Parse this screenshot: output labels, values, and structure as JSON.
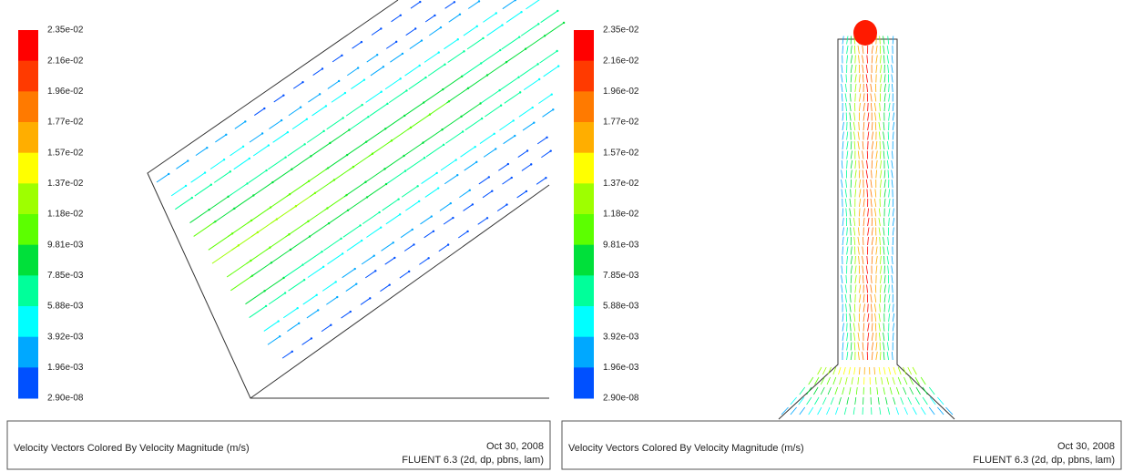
{
  "panels": [
    {
      "colorbar": {
        "labels": [
          "2.35e-02",
          "2.16e-02",
          "1.96e-02",
          "1.77e-02",
          "1.57e-02",
          "1.37e-02",
          "1.18e-02",
          "9.81e-03",
          "7.85e-03",
          "5.88e-03",
          "3.92e-03",
          "1.96e-03",
          "2.90e-08"
        ]
      },
      "footer": {
        "title": "Velocity Vectors Colored By Velocity Magnitude (m/s)",
        "date": "Oct 30, 2008",
        "software": "FLUENT 6.3 (2d, dp, pbns, lam)"
      }
    },
    {
      "colorbar": {
        "labels": [
          "2.35e-02",
          "2.16e-02",
          "1.96e-02",
          "1.77e-02",
          "1.57e-02",
          "1.37e-02",
          "1.18e-02",
          "9.81e-03",
          "7.85e-03",
          "5.88e-03",
          "3.92e-03",
          "1.96e-03",
          "2.90e-08"
        ]
      },
      "footer": {
        "title": "Velocity Vectors Colored By Velocity Magnitude (m/s)",
        "date": "Oct 30, 2008",
        "software": "FLUENT 6.3 (2d, dp, pbns, lam)"
      }
    }
  ]
}
